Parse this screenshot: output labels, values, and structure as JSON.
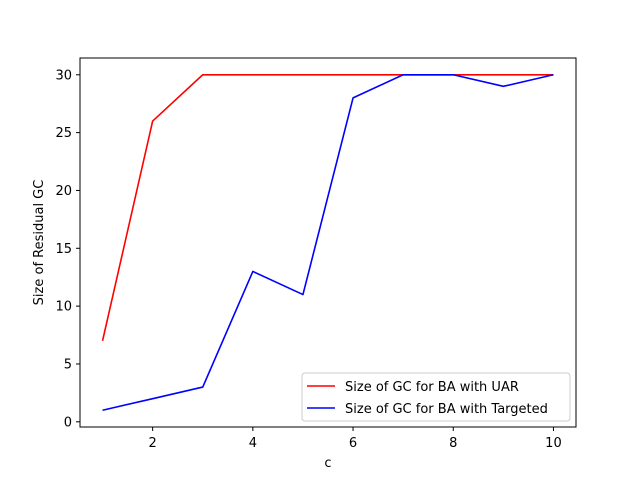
{
  "chart_data": {
    "type": "line",
    "title": "",
    "xlabel": "c",
    "ylabel": "Size of Residual GC",
    "x": [
      1,
      2,
      3,
      4,
      5,
      6,
      7,
      8,
      9,
      10
    ],
    "xlim": [
      0.55,
      10.45
    ],
    "ylim": [
      -0.45,
      31.45
    ],
    "xticks": [
      2,
      4,
      6,
      8,
      10
    ],
    "yticks": [
      0,
      5,
      10,
      15,
      20,
      25,
      30
    ],
    "grid": false,
    "legend_position": "bottom-right",
    "series": [
      {
        "name": "Size of GC for BA with UAR",
        "color": "#ff0000",
        "values": [
          7,
          26,
          30,
          30,
          30,
          30,
          30,
          30,
          30,
          30
        ]
      },
      {
        "name": "Size of GC for BA with Targeted",
        "color": "#0000ff",
        "values": [
          1,
          2,
          3,
          13,
          11,
          28,
          30,
          30,
          29,
          30
        ]
      }
    ]
  }
}
